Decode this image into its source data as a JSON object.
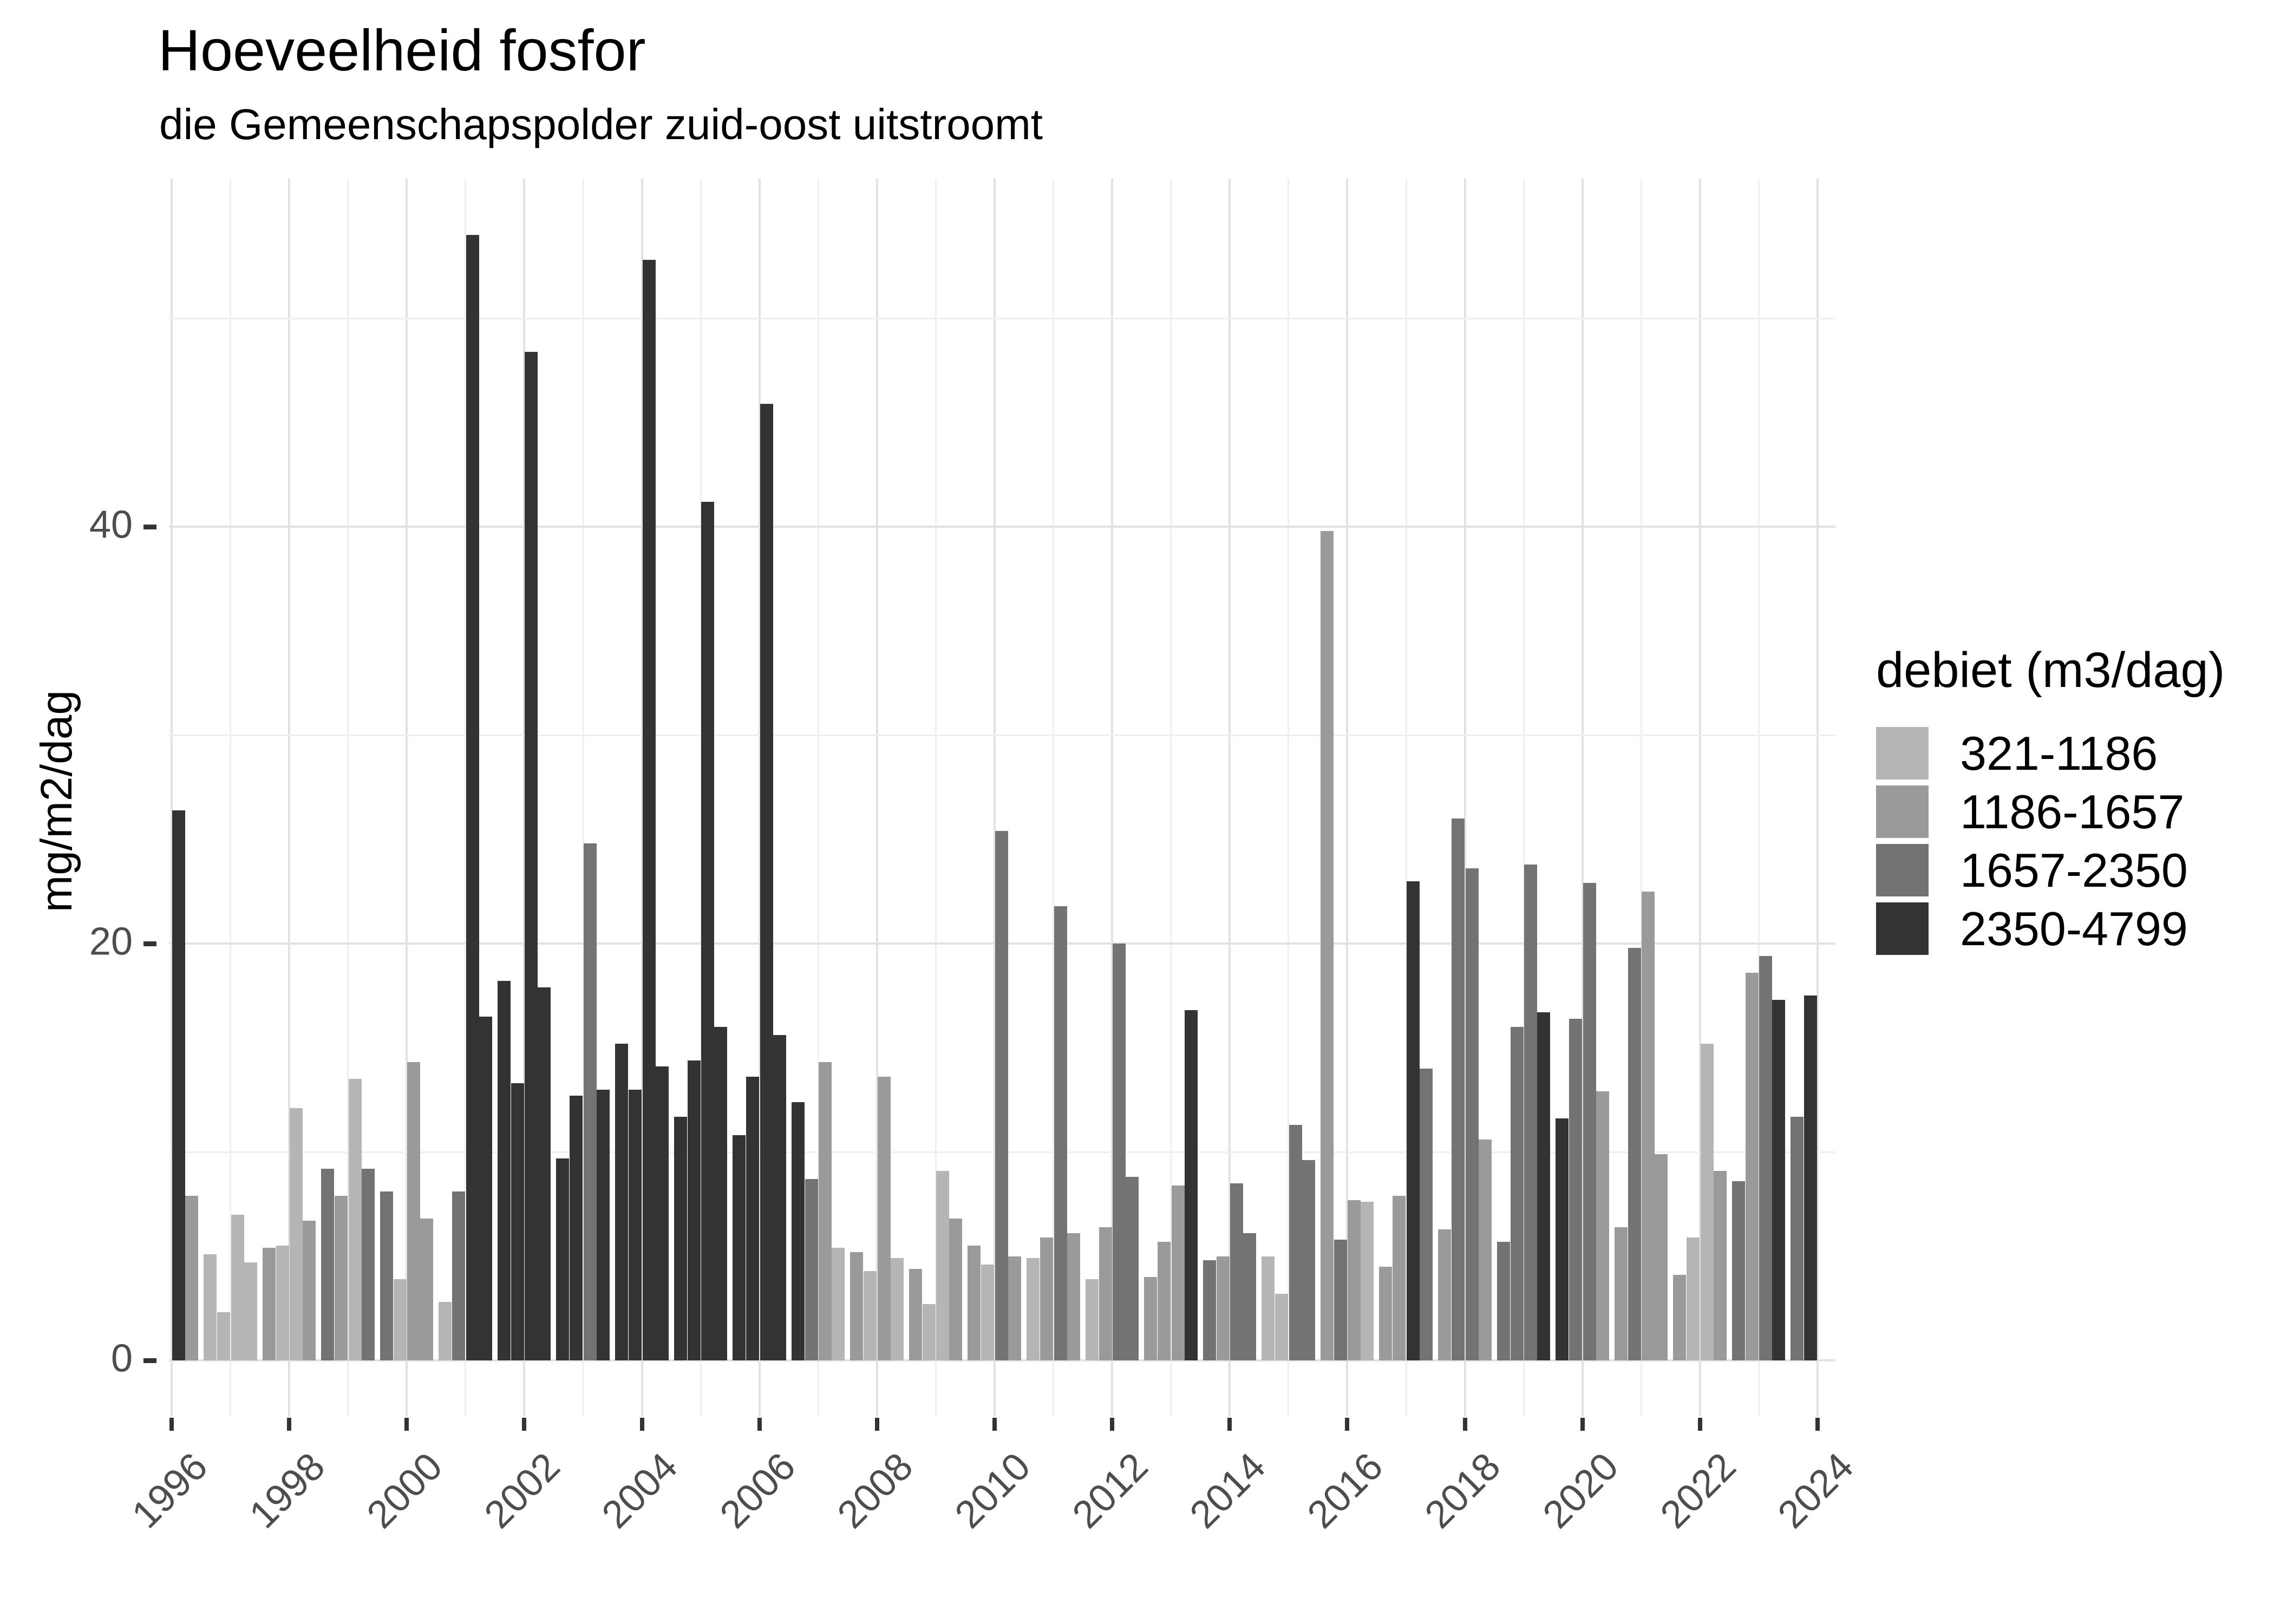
{
  "chart_data": {
    "type": "bar",
    "title": "Hoeveelheid fosfor",
    "subtitle": "die Gemeenschapspolder zuid-oost uitstroomt",
    "ylabel": "mg/m2/dag",
    "xlabel": "",
    "ylim": [
      0,
      56
    ],
    "y_major_ticks": [
      0,
      20,
      40
    ],
    "y_minor_gridlines": [
      10,
      30,
      50
    ],
    "x_tick_years": [
      1996,
      1998,
      2000,
      2002,
      2004,
      2006,
      2008,
      2010,
      2012,
      2014,
      2016,
      2018,
      2020,
      2022,
      2024
    ],
    "x_year_range": [
      1996,
      2024
    ],
    "grid": "on",
    "legend_position": "right",
    "legend": {
      "title": "debiet (m3/dag)",
      "classes": [
        {
          "label": "321-1186",
          "color": "#b5b5b5"
        },
        {
          "label": "1186-1657",
          "color": "#9a9a9a"
        },
        {
          "label": "1657-2350",
          "color": "#737373"
        },
        {
          "label": "2350-4799",
          "color": "#333333"
        }
      ]
    },
    "bars_schema": [
      "year",
      "quarter",
      "value_mg_m2_dag",
      "debiet_class_index_1to4"
    ],
    "bars": [
      [
        1996,
        1,
        26.4,
        4
      ],
      [
        1996,
        2,
        7.9,
        2
      ],
      [
        1996,
        3,
        5.1,
        1
      ],
      [
        1996,
        4,
        2.3,
        1
      ],
      [
        1997,
        1,
        7.0,
        1
      ],
      [
        1997,
        2,
        4.7,
        1
      ],
      [
        1997,
        3,
        5.4,
        2
      ],
      [
        1997,
        4,
        5.5,
        1
      ],
      [
        1998,
        1,
        12.1,
        1
      ],
      [
        1998,
        2,
        6.7,
        2
      ],
      [
        1998,
        3,
        9.2,
        3
      ],
      [
        1998,
        4,
        7.9,
        2
      ],
      [
        1999,
        1,
        13.5,
        1
      ],
      [
        1999,
        2,
        9.2,
        3
      ],
      [
        1999,
        3,
        8.1,
        3
      ],
      [
        1999,
        4,
        3.9,
        1
      ],
      [
        2000,
        1,
        14.3,
        2
      ],
      [
        2000,
        2,
        6.8,
        2
      ],
      [
        2000,
        3,
        2.8,
        1
      ],
      [
        2000,
        4,
        8.1,
        3
      ],
      [
        2001,
        1,
        54.0,
        4
      ],
      [
        2001,
        2,
        16.5,
        4
      ],
      [
        2001,
        3,
        18.2,
        4
      ],
      [
        2001,
        4,
        13.3,
        4
      ],
      [
        2002,
        1,
        48.4,
        4
      ],
      [
        2002,
        2,
        17.9,
        4
      ],
      [
        2002,
        3,
        9.7,
        4
      ],
      [
        2002,
        4,
        12.7,
        4
      ],
      [
        2003,
        1,
        24.8,
        3
      ],
      [
        2003,
        2,
        13.0,
        4
      ],
      [
        2003,
        3,
        15.2,
        4
      ],
      [
        2003,
        4,
        13.0,
        4
      ],
      [
        2004,
        1,
        52.8,
        4
      ],
      [
        2004,
        2,
        14.1,
        4
      ],
      [
        2004,
        3,
        11.7,
        4
      ],
      [
        2004,
        4,
        14.4,
        4
      ],
      [
        2005,
        1,
        41.2,
        4
      ],
      [
        2005,
        2,
        16.0,
        4
      ],
      [
        2005,
        3,
        10.8,
        4
      ],
      [
        2005,
        4,
        13.6,
        4
      ],
      [
        2006,
        1,
        45.9,
        4
      ],
      [
        2006,
        2,
        15.6,
        4
      ],
      [
        2006,
        3,
        12.4,
        4
      ],
      [
        2006,
        4,
        8.7,
        3
      ],
      [
        2007,
        1,
        14.3,
        2
      ],
      [
        2007,
        2,
        5.4,
        1
      ],
      [
        2007,
        3,
        5.2,
        2
      ],
      [
        2007,
        4,
        4.3,
        1
      ],
      [
        2008,
        1,
        13.6,
        2
      ],
      [
        2008,
        2,
        4.9,
        1
      ],
      [
        2008,
        3,
        4.4,
        2
      ],
      [
        2008,
        4,
        2.7,
        1
      ],
      [
        2009,
        1,
        9.1,
        1
      ],
      [
        2009,
        2,
        6.8,
        2
      ],
      [
        2009,
        3,
        5.5,
        2
      ],
      [
        2009,
        4,
        4.6,
        1
      ],
      [
        2010,
        1,
        25.4,
        3
      ],
      [
        2010,
        2,
        5.0,
        2
      ],
      [
        2010,
        3,
        4.9,
        1
      ],
      [
        2010,
        4,
        5.9,
        2
      ],
      [
        2011,
        1,
        21.8,
        3
      ],
      [
        2011,
        2,
        6.1,
        2
      ],
      [
        2011,
        3,
        3.9,
        1
      ],
      [
        2011,
        4,
        6.4,
        2
      ],
      [
        2012,
        1,
        20.0,
        3
      ],
      [
        2012,
        2,
        8.8,
        3
      ],
      [
        2012,
        3,
        4.0,
        2
      ],
      [
        2012,
        4,
        5.7,
        2
      ],
      [
        2013,
        1,
        8.4,
        2
      ],
      [
        2013,
        2,
        16.8,
        4
      ],
      [
        2013,
        3,
        4.8,
        3
      ],
      [
        2013,
        4,
        5.0,
        2
      ],
      [
        2014,
        1,
        8.5,
        3
      ],
      [
        2014,
        2,
        6.1,
        3
      ],
      [
        2014,
        3,
        5.0,
        1
      ],
      [
        2014,
        4,
        3.2,
        1
      ],
      [
        2015,
        1,
        11.3,
        3
      ],
      [
        2015,
        2,
        9.6,
        3
      ],
      [
        2015,
        3,
        39.8,
        2
      ],
      [
        2015,
        4,
        5.8,
        3
      ],
      [
        2016,
        1,
        7.7,
        2
      ],
      [
        2016,
        2,
        7.6,
        1
      ],
      [
        2016,
        3,
        4.5,
        2
      ],
      [
        2016,
        4,
        7.9,
        2
      ],
      [
        2017,
        1,
        23.0,
        4
      ],
      [
        2017,
        2,
        14.0,
        3
      ],
      [
        2017,
        3,
        6.3,
        2
      ],
      [
        2017,
        4,
        26.0,
        3
      ],
      [
        2018,
        1,
        23.6,
        3
      ],
      [
        2018,
        2,
        10.6,
        2
      ],
      [
        2018,
        3,
        5.7,
        3
      ],
      [
        2018,
        4,
        16.0,
        3
      ],
      [
        2019,
        1,
        23.8,
        3
      ],
      [
        2019,
        2,
        16.7,
        4
      ],
      [
        2019,
        3,
        11.6,
        4
      ],
      [
        2019,
        4,
        16.4,
        3
      ],
      [
        2020,
        1,
        22.9,
        3
      ],
      [
        2020,
        2,
        12.9,
        2
      ],
      [
        2020,
        3,
        6.4,
        2
      ],
      [
        2020,
        4,
        19.8,
        3
      ],
      [
        2021,
        1,
        22.5,
        2
      ],
      [
        2021,
        2,
        9.9,
        2
      ],
      [
        2021,
        3,
        4.1,
        2
      ],
      [
        2021,
        4,
        5.9,
        1
      ],
      [
        2022,
        1,
        15.2,
        1
      ],
      [
        2022,
        2,
        9.1,
        2
      ],
      [
        2022,
        3,
        8.6,
        3
      ],
      [
        2022,
        4,
        18.6,
        2
      ],
      [
        2023,
        1,
        19.4,
        3
      ],
      [
        2023,
        2,
        17.3,
        4
      ],
      [
        2023,
        3,
        11.7,
        3
      ],
      [
        2023,
        4,
        17.5,
        4
      ]
    ]
  }
}
